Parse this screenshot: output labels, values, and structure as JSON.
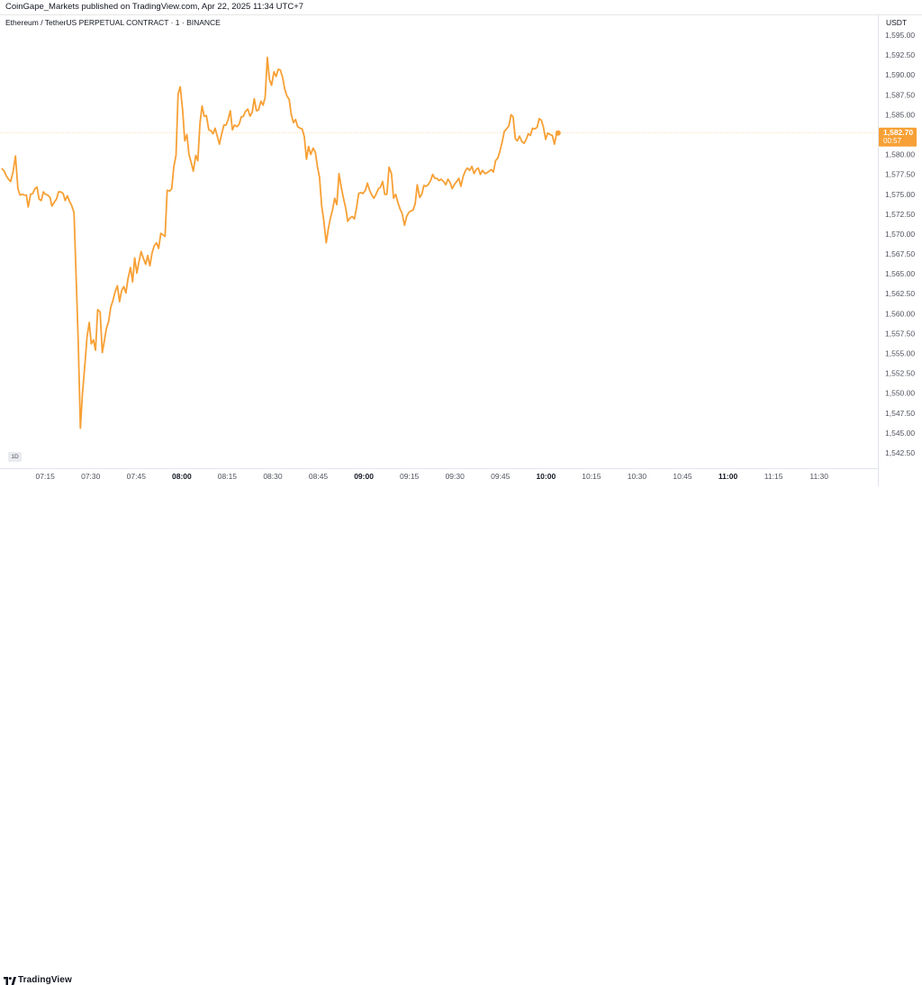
{
  "header": {
    "publish_info": "CoinGape_Markets published on TradingView.com, Apr 22, 2025 11:34 UTC+7"
  },
  "chart_header": {
    "symbol": "Ethereum / TetherUS PERPETUAL CONTRACT · 1 · BINANCE",
    "currency": "USDT"
  },
  "interval_badge": "1D",
  "footer": {
    "brand": "TradingView"
  },
  "colors": {
    "line": "#f7a035",
    "price_tag_bg": "#f7a035",
    "price_tag_text": "#ffffff",
    "background": "#ffffff",
    "axis_text": "#50535e",
    "axis_line": "#e0e3eb"
  },
  "chart_data": {
    "type": "line",
    "title": "Ethereum / TetherUS PERPETUAL CONTRACT · 1 · BINANCE",
    "xlabel": "",
    "ylabel": "",
    "ylim": [
      1542.5,
      1595.0
    ],
    "grid": false,
    "y_ticks": [
      "1,595.00",
      "1,592.50",
      "1,590.00",
      "1,587.50",
      "1,585.00",
      "1,582.50",
      "1,580.00",
      "1,577.50",
      "1,575.00",
      "1,572.50",
      "1,570.00",
      "1,567.50",
      "1,565.00",
      "1,562.50",
      "1,560.00",
      "1,557.50",
      "1,555.00",
      "1,552.50",
      "1,550.00",
      "1,547.50",
      "1,545.00",
      "1,542.50"
    ],
    "x_ticks": [
      {
        "label": "07:15",
        "minute": 435,
        "bold": false
      },
      {
        "label": "07:30",
        "minute": 450,
        "bold": false
      },
      {
        "label": "07:45",
        "minute": 465,
        "bold": false
      },
      {
        "label": "08:00",
        "minute": 480,
        "bold": true
      },
      {
        "label": "08:15",
        "minute": 495,
        "bold": false
      },
      {
        "label": "08:30",
        "minute": 510,
        "bold": false
      },
      {
        "label": "08:45",
        "minute": 525,
        "bold": false
      },
      {
        "label": "09:00",
        "minute": 540,
        "bold": true
      },
      {
        "label": "09:15",
        "minute": 555,
        "bold": false
      },
      {
        "label": "09:30",
        "minute": 570,
        "bold": false
      },
      {
        "label": "09:45",
        "minute": 585,
        "bold": false
      },
      {
        "label": "10:00",
        "minute": 600,
        "bold": true
      },
      {
        "label": "10:15",
        "minute": 615,
        "bold": false
      },
      {
        "label": "10:30",
        "minute": 630,
        "bold": false
      },
      {
        "label": "10:45",
        "minute": 645,
        "bold": false
      },
      {
        "label": "11:00",
        "minute": 660,
        "bold": true
      },
      {
        "label": "11:15",
        "minute": 675,
        "bold": false
      },
      {
        "label": "11:30",
        "minute": 690,
        "bold": false
      }
    ],
    "x_minutes_range": [
      421,
      699
    ],
    "last_price": {
      "label": "1,582.70",
      "countdown": "00:57",
      "value": 1582.7
    },
    "series": [
      {
        "points": [
          [
            420.8,
            1578.2
          ],
          [
            421.5,
            1577.9
          ],
          [
            422.2,
            1577.3
          ],
          [
            422.9,
            1576.9
          ],
          [
            423.6,
            1576.6
          ],
          [
            424.4,
            1577.8
          ],
          [
            425.2,
            1579.8
          ],
          [
            426.0,
            1575.7
          ],
          [
            426.7,
            1574.9
          ],
          [
            427.4,
            1575.0
          ],
          [
            428.1,
            1574.9
          ],
          [
            428.8,
            1574.9
          ],
          [
            429.4,
            1573.4
          ],
          [
            430.2,
            1575.0
          ],
          [
            430.9,
            1575.1
          ],
          [
            431.6,
            1575.7
          ],
          [
            432.3,
            1575.9
          ],
          [
            433.0,
            1574.4
          ],
          [
            433.7,
            1574.2
          ],
          [
            434.4,
            1575.3
          ],
          [
            435.1,
            1575.0
          ],
          [
            435.8,
            1574.9
          ],
          [
            436.6,
            1574.6
          ],
          [
            437.2,
            1573.5
          ],
          [
            438.0,
            1574.0
          ],
          [
            438.7,
            1574.4
          ],
          [
            439.4,
            1575.3
          ],
          [
            440.1,
            1575.3
          ],
          [
            440.9,
            1575.1
          ],
          [
            441.6,
            1574.2
          ],
          [
            442.3,
            1574.8
          ],
          [
            443.0,
            1574.1
          ],
          [
            443.7,
            1573.6
          ],
          [
            444.5,
            1572.7
          ],
          [
            445.2,
            1564.5
          ],
          [
            445.9,
            1556.4
          ],
          [
            446.6,
            1545.6
          ],
          [
            447.3,
            1550.0
          ],
          [
            448.0,
            1553.2
          ],
          [
            448.8,
            1557.1
          ],
          [
            449.5,
            1558.9
          ],
          [
            450.2,
            1556.2
          ],
          [
            450.9,
            1556.7
          ],
          [
            451.6,
            1555.4
          ],
          [
            452.3,
            1560.5
          ],
          [
            453.1,
            1560.2
          ],
          [
            453.8,
            1555.1
          ],
          [
            454.5,
            1556.6
          ],
          [
            455.2,
            1558.2
          ],
          [
            455.9,
            1559.0
          ],
          [
            456.6,
            1560.8
          ],
          [
            457.3,
            1561.6
          ],
          [
            458.1,
            1562.8
          ],
          [
            458.8,
            1563.5
          ],
          [
            459.5,
            1561.5
          ],
          [
            460.2,
            1562.9
          ],
          [
            460.9,
            1563.4
          ],
          [
            461.6,
            1562.6
          ],
          [
            462.3,
            1564.4
          ],
          [
            463.1,
            1565.8
          ],
          [
            463.8,
            1564.0
          ],
          [
            464.5,
            1567.0
          ],
          [
            465.2,
            1565.1
          ],
          [
            465.9,
            1566.5
          ],
          [
            466.6,
            1567.8
          ],
          [
            467.3,
            1567.0
          ],
          [
            468.1,
            1566.2
          ],
          [
            468.8,
            1567.3
          ],
          [
            469.5,
            1566.0
          ],
          [
            470.2,
            1567.6
          ],
          [
            470.9,
            1568.5
          ],
          [
            471.7,
            1568.9
          ],
          [
            472.4,
            1568.2
          ],
          [
            473.1,
            1570.1
          ],
          [
            473.8,
            1569.9
          ],
          [
            474.5,
            1569.7
          ],
          [
            475.2,
            1575.5
          ],
          [
            476.0,
            1575.4
          ],
          [
            476.7,
            1575.7
          ],
          [
            477.4,
            1578.5
          ],
          [
            478.1,
            1579.9
          ],
          [
            478.8,
            1587.6
          ],
          [
            479.5,
            1588.5
          ],
          [
            480.3,
            1585.5
          ],
          [
            481.0,
            1581.7
          ],
          [
            481.7,
            1582.5
          ],
          [
            482.4,
            1580.0
          ],
          [
            483.1,
            1579.0
          ],
          [
            483.8,
            1577.9
          ],
          [
            484.6,
            1579.9
          ],
          [
            485.3,
            1579.2
          ],
          [
            486.0,
            1583.9
          ],
          [
            486.7,
            1586.1
          ],
          [
            487.4,
            1584.8
          ],
          [
            488.1,
            1584.9
          ],
          [
            488.9,
            1583.1
          ],
          [
            489.6,
            1583.0
          ],
          [
            490.3,
            1582.6
          ],
          [
            491.0,
            1583.3
          ],
          [
            491.7,
            1582.3
          ],
          [
            492.4,
            1581.3
          ],
          [
            493.1,
            1582.5
          ],
          [
            493.9,
            1583.7
          ],
          [
            494.6,
            1583.7
          ],
          [
            495.3,
            1584.4
          ],
          [
            496.0,
            1585.5
          ],
          [
            496.7,
            1583.1
          ],
          [
            497.4,
            1583.7
          ],
          [
            498.2,
            1583.5
          ],
          [
            498.9,
            1583.8
          ],
          [
            499.6,
            1584.7
          ],
          [
            500.3,
            1584.8
          ],
          [
            501.0,
            1585.4
          ],
          [
            501.8,
            1585.7
          ],
          [
            502.5,
            1584.8
          ],
          [
            503.2,
            1585.3
          ],
          [
            503.9,
            1587.0
          ],
          [
            504.6,
            1585.5
          ],
          [
            505.3,
            1585.6
          ],
          [
            506.1,
            1586.7
          ],
          [
            506.8,
            1586.2
          ],
          [
            507.5,
            1587.2
          ],
          [
            508.2,
            1592.2
          ],
          [
            508.9,
            1589.4
          ],
          [
            509.6,
            1588.7
          ],
          [
            510.4,
            1590.4
          ],
          [
            511.1,
            1589.8
          ],
          [
            511.8,
            1590.7
          ],
          [
            512.5,
            1590.6
          ],
          [
            513.2,
            1589.7
          ],
          [
            513.9,
            1588.3
          ],
          [
            514.6,
            1587.4
          ],
          [
            515.4,
            1586.9
          ],
          [
            516.1,
            1585.0
          ],
          [
            516.8,
            1584.0
          ],
          [
            517.5,
            1584.4
          ],
          [
            518.2,
            1583.5
          ],
          [
            519.0,
            1583.3
          ],
          [
            519.7,
            1583.2
          ],
          [
            520.4,
            1582.2
          ],
          [
            521.1,
            1579.4
          ],
          [
            521.8,
            1581.0
          ],
          [
            522.5,
            1580.0
          ],
          [
            523.3,
            1580.8
          ],
          [
            524.0,
            1580.3
          ],
          [
            524.7,
            1578.5
          ],
          [
            525.4,
            1577.1
          ],
          [
            526.1,
            1573.6
          ],
          [
            526.8,
            1571.7
          ],
          [
            527.6,
            1568.9
          ],
          [
            528.3,
            1570.7
          ],
          [
            529.0,
            1572.0
          ],
          [
            529.7,
            1573.1
          ],
          [
            530.4,
            1574.5
          ],
          [
            531.1,
            1573.7
          ],
          [
            531.8,
            1577.6
          ],
          [
            532.6,
            1575.8
          ],
          [
            533.3,
            1574.5
          ],
          [
            534.0,
            1573.3
          ],
          [
            534.7,
            1571.6
          ],
          [
            535.4,
            1572.0
          ],
          [
            536.2,
            1572.2
          ],
          [
            536.9,
            1571.9
          ],
          [
            537.6,
            1573.3
          ],
          [
            538.3,
            1575.1
          ],
          [
            539.0,
            1575.2
          ],
          [
            539.7,
            1575.1
          ],
          [
            540.5,
            1575.5
          ],
          [
            541.2,
            1576.4
          ],
          [
            541.9,
            1575.5
          ],
          [
            542.6,
            1574.9
          ],
          [
            543.3,
            1574.5
          ],
          [
            544.0,
            1575.0
          ],
          [
            544.8,
            1575.7
          ],
          [
            545.5,
            1575.9
          ],
          [
            546.2,
            1576.6
          ],
          [
            546.9,
            1575.0
          ],
          [
            547.6,
            1575.0
          ],
          [
            548.3,
            1578.4
          ],
          [
            549.1,
            1577.6
          ],
          [
            549.8,
            1574.5
          ],
          [
            550.5,
            1575.0
          ],
          [
            551.2,
            1574.0
          ],
          [
            551.9,
            1573.2
          ],
          [
            552.6,
            1572.6
          ],
          [
            553.4,
            1571.1
          ],
          [
            554.1,
            1572.2
          ],
          [
            554.8,
            1572.7
          ],
          [
            555.5,
            1572.9
          ],
          [
            556.2,
            1573.0
          ],
          [
            556.9,
            1573.8
          ],
          [
            557.6,
            1576.2
          ],
          [
            558.4,
            1574.6
          ],
          [
            559.1,
            1575.0
          ],
          [
            559.8,
            1576.1
          ],
          [
            560.5,
            1576.0
          ],
          [
            561.2,
            1576.2
          ],
          [
            562.0,
            1576.7
          ],
          [
            562.7,
            1577.5
          ],
          [
            563.4,
            1577.0
          ],
          [
            564.1,
            1577.0
          ],
          [
            564.8,
            1576.7
          ],
          [
            565.5,
            1576.9
          ],
          [
            566.3,
            1576.6
          ],
          [
            567.0,
            1576.2
          ],
          [
            567.7,
            1576.9
          ],
          [
            568.4,
            1576.5
          ],
          [
            569.1,
            1575.7
          ],
          [
            569.8,
            1576.2
          ],
          [
            570.6,
            1576.6
          ],
          [
            571.3,
            1577.0
          ],
          [
            572.0,
            1576.0
          ],
          [
            572.7,
            1577.2
          ],
          [
            573.4,
            1577.9
          ],
          [
            574.1,
            1578.3
          ],
          [
            574.9,
            1578.0
          ],
          [
            575.6,
            1578.5
          ],
          [
            576.3,
            1577.6
          ],
          [
            577.0,
            1578.1
          ],
          [
            577.7,
            1578.3
          ],
          [
            578.4,
            1577.5
          ],
          [
            579.1,
            1578.0
          ],
          [
            579.9,
            1577.6
          ],
          [
            580.6,
            1577.7
          ],
          [
            581.3,
            1577.9
          ],
          [
            582.0,
            1578.1
          ],
          [
            582.7,
            1577.8
          ],
          [
            583.4,
            1579.2
          ],
          [
            584.2,
            1579.6
          ],
          [
            584.9,
            1580.5
          ],
          [
            585.6,
            1581.6
          ],
          [
            586.3,
            1582.9
          ],
          [
            587.0,
            1583.2
          ],
          [
            587.8,
            1583.6
          ],
          [
            588.5,
            1585.0
          ],
          [
            589.2,
            1584.7
          ],
          [
            589.9,
            1582.0
          ],
          [
            590.6,
            1581.7
          ],
          [
            591.3,
            1582.3
          ],
          [
            592.1,
            1581.6
          ],
          [
            592.8,
            1581.4
          ],
          [
            593.5,
            1581.9
          ],
          [
            594.2,
            1582.6
          ],
          [
            594.9,
            1582.4
          ],
          [
            595.6,
            1583.3
          ],
          [
            596.3,
            1583.2
          ],
          [
            597.1,
            1583.4
          ],
          [
            597.8,
            1584.5
          ],
          [
            598.5,
            1584.3
          ],
          [
            599.2,
            1583.4
          ],
          [
            599.9,
            1581.9
          ],
          [
            600.6,
            1582.7
          ],
          [
            601.4,
            1582.5
          ],
          [
            602.1,
            1582.4
          ],
          [
            602.8,
            1581.3
          ],
          [
            603.5,
            1582.6
          ],
          [
            604.0,
            1582.7
          ]
        ]
      }
    ]
  }
}
